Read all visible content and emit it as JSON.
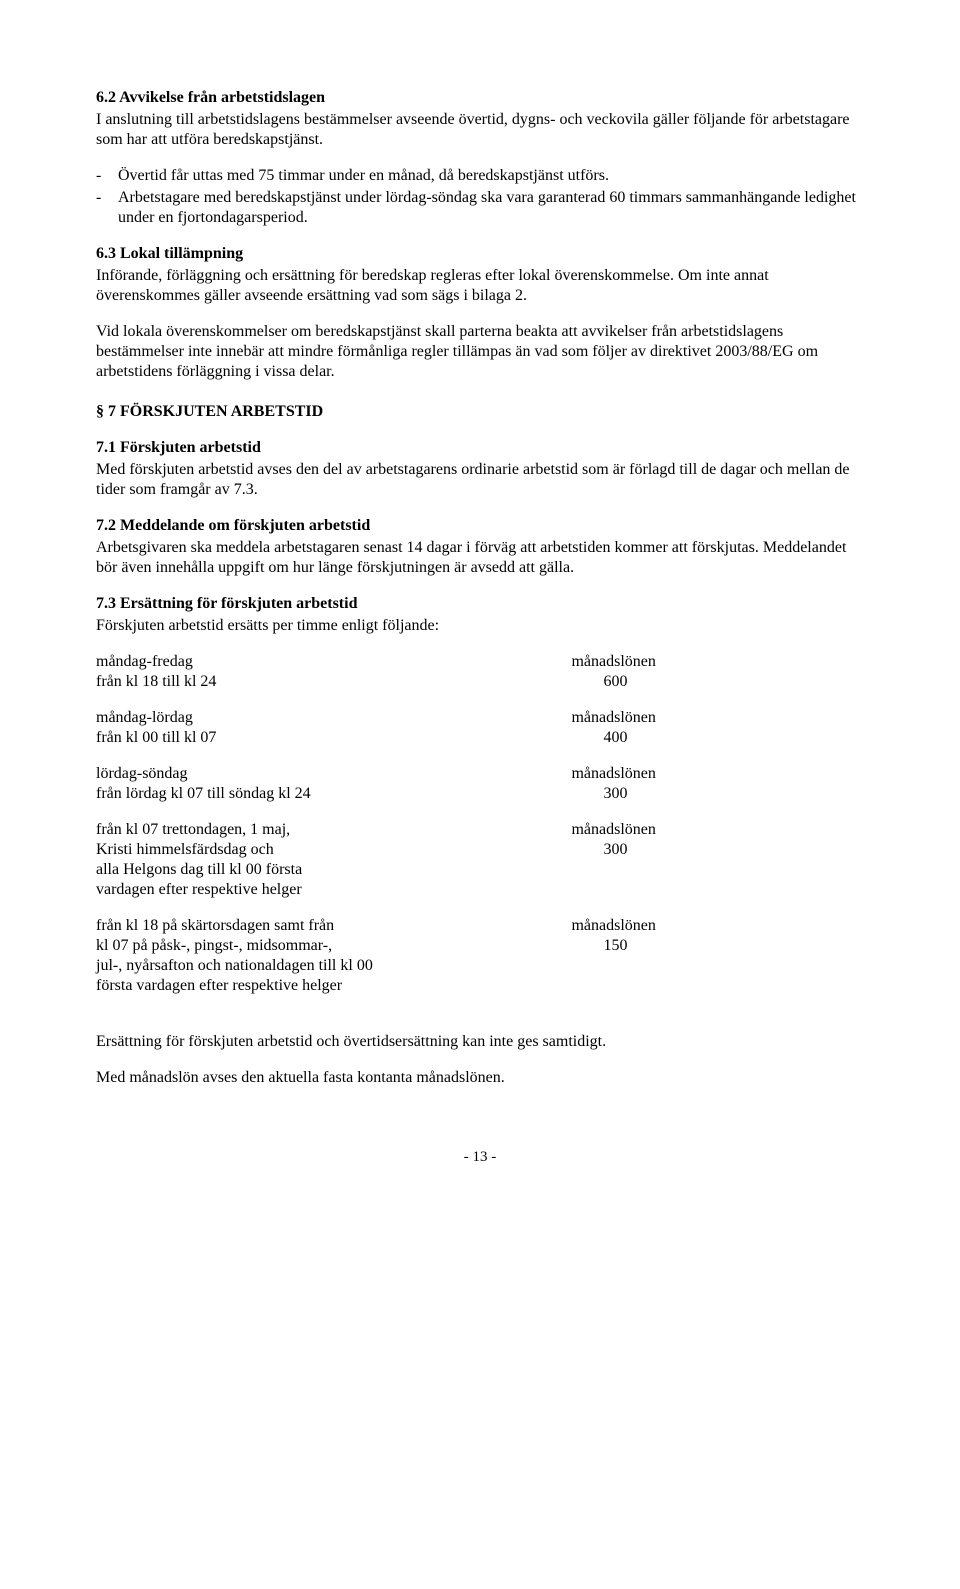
{
  "s62": {
    "title": "6.2    Avvikelse från arbetstidslagen",
    "p1": "I anslutning till arbetstidslagens bestämmelser avseende övertid, dygns- och veckovila gäller följande för arbetstagare som har att utföra beredskapstjänst.",
    "bullets": [
      "Övertid får uttas med 75 timmar under en månad, då beredskapstjänst utförs.",
      "Arbetstagare med beredskapstjänst under lördag-söndag ska vara garanterad 60 timmars sammanhängande ledighet under en fjortondagarsperiod."
    ]
  },
  "s63": {
    "title": "6.3    Lokal tillämpning",
    "p1": "Införande, förläggning och ersättning för beredskap regleras efter lokal överenskommelse. Om inte annat överenskommes gäller avseende ersättning vad som sägs i bilaga 2.",
    "p2": "Vid lokala överenskommelser om beredskapstjänst skall parterna beakta att avvikelser från arbetstidslagens bestämmelser inte innebär att mindre förmånliga regler tillämpas än vad som följer av direktivet 2003/88/EG om arbetstidens förläggning i vissa delar."
  },
  "s7": {
    "title": "§ 7 FÖRSKJUTEN ARBETSTID"
  },
  "s71": {
    "title": "7.1    Förskjuten arbetstid",
    "p1": "Med förskjuten arbetstid avses den del av arbetstagarens ordinarie arbetstid som är förlagd till de dagar och mellan de tider som framgår av 7.3."
  },
  "s72": {
    "title": "7.2    Meddelande om förskjuten arbetstid",
    "p1": "Arbetsgivaren ska meddela arbetstagaren senast 14 dagar i förväg att arbetstiden kommer att förskjutas. Meddelandet bör även innehålla uppgift om hur länge förskjutningen är avsedd att gälla."
  },
  "s73": {
    "title": "7.3    Ersättning för förskjuten arbetstid",
    "intro": "Förskjuten arbetstid ersätts per timme enligt följande:",
    "rows": [
      {
        "left_lines": [
          "måndag-fredag",
          "från kl 18 till kl 24"
        ],
        "right_lines": [
          "månadslönen",
          "        600"
        ]
      },
      {
        "left_lines": [
          "måndag-lördag",
          "från kl 00 till kl 07"
        ],
        "right_lines": [
          "månadslönen",
          "        400"
        ]
      },
      {
        "left_lines": [
          "lördag-söndag",
          "från lördag kl 07 till söndag kl 24"
        ],
        "right_lines": [
          "månadslönen",
          "        300"
        ]
      },
      {
        "left_lines": [
          "från kl 07 trettondagen, 1 maj,",
          "Kristi himmelsfärdsdag och",
          "alla Helgons dag till kl 00 första",
          "vardagen efter respektive helger"
        ],
        "right_lines": [
          "månadslönen",
          "        300"
        ]
      },
      {
        "left_lines": [
          "från kl 18 på skärtorsdagen samt från",
          "kl 07 på påsk-, pingst-, midsommar-,",
          "jul-, nyårsafton och nationaldagen till kl 00",
          "första vardagen efter respektive helger"
        ],
        "right_lines": [
          "månadslönen",
          "        150"
        ]
      }
    ],
    "p_after1": "Ersättning för förskjuten arbetstid och övertidsersättning kan inte ges samtidigt.",
    "p_after2": "Med månadslön avses den aktuella fasta kontanta månadslönen."
  },
  "footer": "-  13  -"
}
